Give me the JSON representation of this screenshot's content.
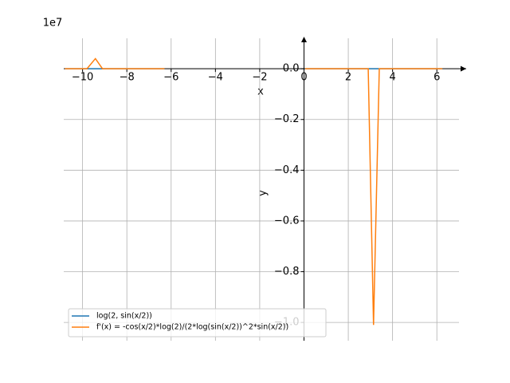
{
  "chart_data": {
    "type": "line",
    "x_label": "x",
    "y_label": "y",
    "y_offset": "1e7",
    "x": [
      -10.8,
      -9.8,
      -9.42,
      -9.1,
      -6.3,
      -3,
      0.05,
      2.9,
      3.14,
      3.4,
      6.25
    ],
    "series": [
      {
        "name": "log(2, sin(x/2))",
        "color": "#1f77b4",
        "values": [
          0,
          0,
          0,
          0,
          0,
          null,
          0,
          0,
          0,
          0,
          0
        ]
      },
      {
        "name": "f'(x) = -cos(x/2)*log(2)/(2*log(sin(x/2))^2*sin(x/2))",
        "color": "#ff7f0e",
        "values": [
          0,
          0,
          0.04,
          0,
          0,
          null,
          0,
          0,
          -1.01,
          0,
          0
        ]
      }
    ],
    "xlim": [
      -10.85,
      7.0
    ],
    "ylim": [
      -1.072,
      0.12
    ],
    "xticks": [
      {
        "value": -10,
        "label": "−10"
      },
      {
        "value": -8,
        "label": "−8"
      },
      {
        "value": -6,
        "label": "−6"
      },
      {
        "value": -4,
        "label": "−4"
      },
      {
        "value": -2,
        "label": "−2"
      },
      0,
      2,
      4,
      6
    ],
    "yticks": [
      {
        "value": 0,
        "label": "0.0"
      },
      {
        "value": -0.2,
        "label": "−0.2"
      },
      {
        "value": -0.4,
        "label": "−0.4"
      },
      {
        "value": -0.6,
        "label": "−0.6"
      },
      {
        "value": -0.8,
        "label": "−0.8"
      },
      {
        "value": -1.0,
        "label": "−1.0"
      }
    ],
    "grid": true,
    "legend": "lower left"
  }
}
